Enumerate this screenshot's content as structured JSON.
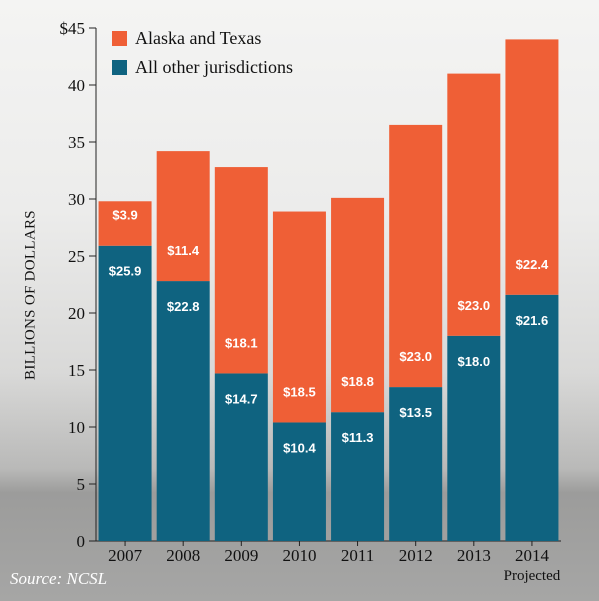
{
  "chart_data": {
    "type": "bar",
    "stacked": true,
    "categories": [
      "2007",
      "2008",
      "2009",
      "2010",
      "2011",
      "2012",
      "2013",
      "2014"
    ],
    "category_sublabels": [
      "",
      "",
      "",
      "",
      "",
      "",
      "",
      "Projected"
    ],
    "series": [
      {
        "name": "All other jurisdictions",
        "color": "#0f6380",
        "values": [
          25.9,
          22.8,
          14.7,
          10.4,
          11.3,
          13.5,
          18.0,
          21.6
        ],
        "labels": [
          "$25.9",
          "$22.8",
          "$14.7",
          "$10.4",
          "$11.3",
          "$13.5",
          "$18.0",
          "$21.6"
        ]
      },
      {
        "name": "Alaska and Texas",
        "color": "#ef5f36",
        "values": [
          3.9,
          11.4,
          18.1,
          18.5,
          18.8,
          23.0,
          23.0,
          22.4
        ],
        "labels": [
          "$3.9",
          "$11.4",
          "$18.1",
          "$18.5",
          "$18.8",
          "$23.0",
          "$23.0",
          "$22.4"
        ]
      }
    ],
    "legend_order": [
      "Alaska and Texas",
      "All other jurisdictions"
    ],
    "ylabel": "BILLIONS OF DOLLARS",
    "ylim": [
      0,
      45
    ],
    "yticks": [
      0,
      5,
      10,
      15,
      20,
      25,
      30,
      35,
      40,
      45
    ],
    "ytick_labels": [
      "0",
      "5",
      "10",
      "15",
      "20",
      "25",
      "30",
      "35",
      "40",
      "$45"
    ],
    "legend_position": "top-left",
    "grid": false,
    "source": "Source: NCSL"
  }
}
